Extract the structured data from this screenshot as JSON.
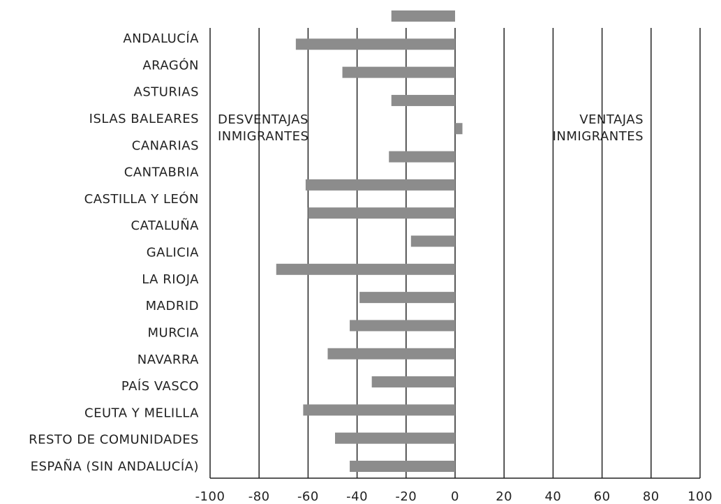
{
  "chart_data": {
    "type": "barh",
    "categories": [
      "ANDALUCÍA",
      "ARAGÓN",
      "ASTURIAS",
      "ISLAS BALEARES",
      "CANARIAS",
      "CANTABRIA",
      "CASTILLA Y LEÓN",
      "CATALUÑA",
      "GALICIA",
      "LA RIOJA",
      "MADRID",
      "MURCIA",
      "NAVARRA",
      "PAÍS VASCO",
      "CEUTA Y MELILLA",
      "RESTO DE COMUNIDADES",
      "ESPAÑA (SIN ANDALUCÍA)"
    ],
    "values": [
      -26,
      -65,
      -46,
      -26,
      3,
      -27,
      -61,
      -60,
      -18,
      -73,
      -39,
      -43,
      -52,
      -34,
      -62,
      -49,
      -43
    ],
    "color": "#8c8c8c",
    "xlim": [
      -100,
      100
    ],
    "xticks": [
      -100,
      -80,
      -60,
      -40,
      -20,
      0,
      20,
      40,
      60,
      80,
      100
    ],
    "grid": true,
    "annotations": [
      {
        "lines": [
          "DESVENTAJAS",
          "INMIGRANTES"
        ]
      },
      {
        "lines": [
          "VENTAJAS",
          "INMIGRANTES"
        ]
      }
    ]
  }
}
